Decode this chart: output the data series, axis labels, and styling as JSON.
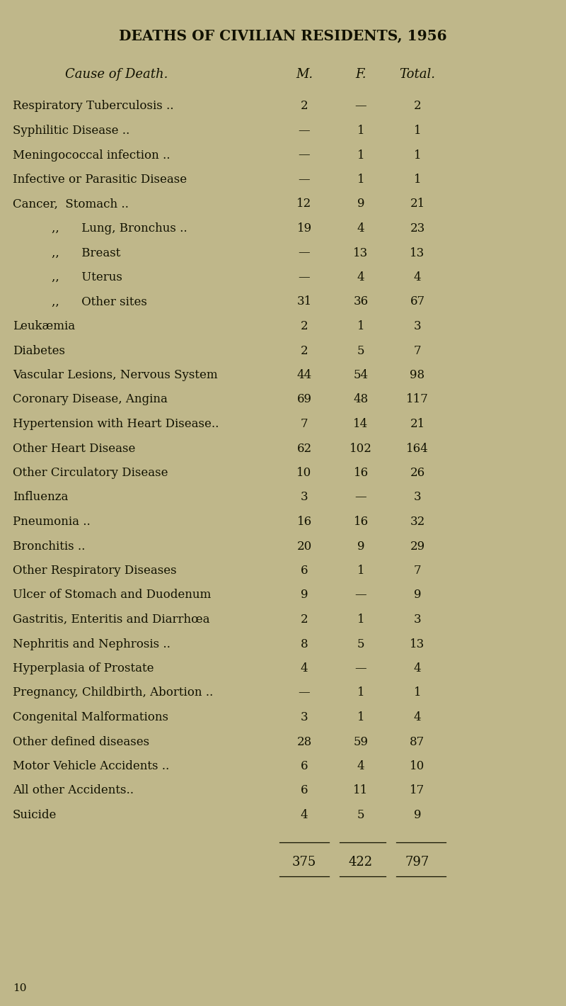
{
  "title": "DEATHS OF CIVILIAN RESIDENTS, 1956",
  "col_headers": [
    "Cause of Death.",
    "M.",
    "F.",
    "Total."
  ],
  "rows": [
    {
      "label": "Respiratory Tuberculosis ..",
      "indent": 0,
      "m": "2",
      "f": "—",
      "total": "2"
    },
    {
      "label": "Syphilitic Disease ..",
      "indent": 0,
      "m": "—",
      "f": "1",
      "total": "1"
    },
    {
      "label": "Meningococcal infection ..",
      "indent": 0,
      "m": "—",
      "f": "1",
      "total": "1"
    },
    {
      "label": "Infective or Parasitic Disease",
      "indent": 0,
      "m": "—",
      "f": "1",
      "total": "1"
    },
    {
      "label": "Cancer,  Stomach ..",
      "indent": 0,
      "m": "12",
      "f": "9",
      "total": "21"
    },
    {
      "label": ",,      Lung, Bronchus ..",
      "indent": 1,
      "m": "19",
      "f": "4",
      "total": "23"
    },
    {
      "label": ",,      Breast",
      "indent": 1,
      "m": "—",
      "f": "13",
      "total": "13"
    },
    {
      "label": ",,      Uterus",
      "indent": 1,
      "m": "—",
      "f": "4",
      "total": "4"
    },
    {
      "label": ",,      Other sites",
      "indent": 1,
      "m": "31",
      "f": "36",
      "total": "67"
    },
    {
      "label": "Leukæmia",
      "indent": 0,
      "m": "2",
      "f": "1",
      "total": "3"
    },
    {
      "label": "Diabetes",
      "indent": 0,
      "m": "2",
      "f": "5",
      "total": "7"
    },
    {
      "label": "Vascular Lesions, Nervous System",
      "indent": 0,
      "m": "44",
      "f": "54",
      "total": "98"
    },
    {
      "label": "Coronary Disease, Angina",
      "indent": 0,
      "m": "69",
      "f": "48",
      "total": "117"
    },
    {
      "label": "Hypertension with Heart Disease..",
      "indent": 0,
      "m": "7",
      "f": "14",
      "total": "21"
    },
    {
      "label": "Other Heart Disease",
      "indent": 0,
      "m": "62",
      "f": "102",
      "total": "164"
    },
    {
      "label": "Other Circulatory Disease",
      "indent": 0,
      "m": "10",
      "f": "16",
      "total": "26"
    },
    {
      "label": "Influenza",
      "indent": 0,
      "m": "3",
      "f": "—",
      "total": "3"
    },
    {
      "label": "Pneumonia ..",
      "indent": 0,
      "m": "16",
      "f": "16",
      "total": "32"
    },
    {
      "label": "Bronchitis ..",
      "indent": 0,
      "m": "20",
      "f": "9",
      "total": "29"
    },
    {
      "label": "Other Respiratory Diseases",
      "indent": 0,
      "m": "6",
      "f": "1",
      "total": "7"
    },
    {
      "label": "Ulcer of Stomach and Duodenum",
      "indent": 0,
      "m": "9",
      "f": "—",
      "total": "9"
    },
    {
      "label": "Gastritis, Enteritis and Diarrhœa",
      "indent": 0,
      "m": "2",
      "f": "1",
      "total": "3"
    },
    {
      "label": "Nephritis and Nephrosis ..",
      "indent": 0,
      "m": "8",
      "f": "5",
      "total": "13"
    },
    {
      "label": "Hyperplasia of Prostate",
      "indent": 0,
      "m": "4",
      "f": "—",
      "total": "4"
    },
    {
      "label": "Pregnancy, Childbirth, Abortion ..",
      "indent": 0,
      "m": "—",
      "f": "1",
      "total": "1"
    },
    {
      "label": "Congenital Malformations",
      "indent": 0,
      "m": "3",
      "f": "1",
      "total": "4"
    },
    {
      "label": "Other defined diseases",
      "indent": 0,
      "m": "28",
      "f": "59",
      "total": "87"
    },
    {
      "label": "Motor Vehicle Accidents ..",
      "indent": 0,
      "m": "6",
      "f": "4",
      "total": "10"
    },
    {
      "label": "All other Accidents..",
      "indent": 0,
      "m": "6",
      "f": "11",
      "total": "17"
    },
    {
      "label": "Suicide",
      "indent": 0,
      "m": "4",
      "f": "5",
      "total": "9"
    }
  ],
  "totals": {
    "m": "375",
    "f": "422",
    "total": "797"
  },
  "footer": "10",
  "bg_color": "#bfb78a",
  "text_color": "#111100",
  "title_fontsize": 14.5,
  "header_fontsize": 13,
  "row_fontsize": 12,
  "total_fontsize": 13
}
